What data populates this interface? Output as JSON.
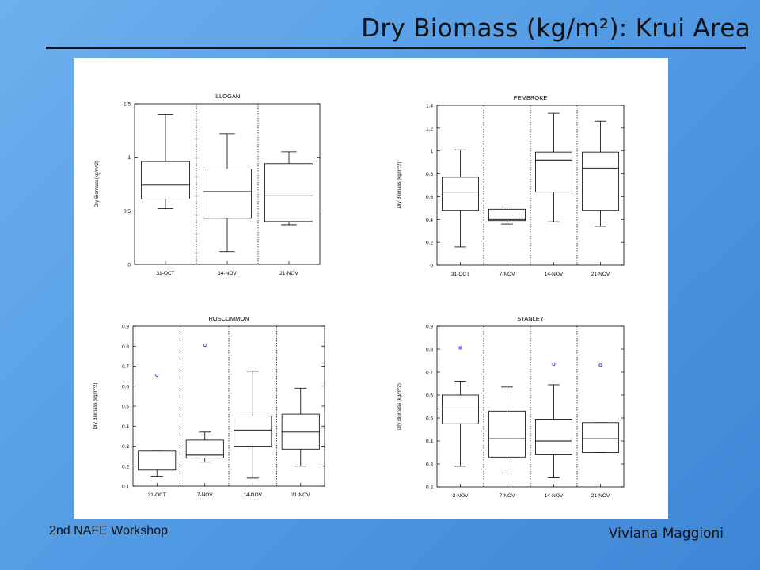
{
  "slide": {
    "title": "Dry Biomass (kg/m²): Krui Area",
    "footer_left": "2nd NAFE Workshop",
    "footer_right": "Viviana Maggioni"
  },
  "chart_data": [
    {
      "type": "boxplot",
      "title": "ILLOGAN",
      "ylabel": "Dry Biomass (kg/m^2)",
      "ylim": [
        0,
        1.5
      ],
      "yticks": [
        0,
        0.5,
        1,
        1.5
      ],
      "ytick_labels": [
        "0",
        "0.5",
        "1",
        "1.5"
      ],
      "categories": [
        "31-OCT",
        "14-NOV",
        "21-NOV"
      ],
      "boxes": [
        {
          "min": 0.52,
          "q1": 0.61,
          "median": 0.74,
          "q3": 0.96,
          "max": 1.4,
          "outliers": []
        },
        {
          "min": 0.12,
          "q1": 0.43,
          "median": 0.68,
          "q3": 0.89,
          "max": 1.22,
          "outliers": []
        },
        {
          "min": 0.37,
          "q1": 0.4,
          "median": 0.64,
          "q3": 0.94,
          "max": 1.05,
          "outliers": []
        }
      ]
    },
    {
      "type": "boxplot",
      "title": "PEMBROKE",
      "ylabel": "Dry Biomass (kg/m^2)",
      "ylim": [
        0,
        1.4
      ],
      "yticks": [
        0,
        0.2,
        0.4,
        0.6,
        0.8,
        1,
        1.2,
        1.4
      ],
      "ytick_labels": [
        "0",
        "0.2",
        "0.4",
        "0.6",
        "0.8",
        "1",
        "1.2",
        "1.4"
      ],
      "categories": [
        "31-OCT",
        "7-NOV",
        "14-NOV",
        "21-NOV"
      ],
      "boxes": [
        {
          "min": 0.16,
          "q1": 0.48,
          "median": 0.64,
          "q3": 0.77,
          "max": 1.01,
          "outliers": []
        },
        {
          "min": 0.36,
          "q1": 0.39,
          "median": 0.4,
          "q3": 0.49,
          "max": 0.51,
          "outliers": []
        },
        {
          "min": 0.38,
          "q1": 0.64,
          "median": 0.92,
          "q3": 0.99,
          "max": 1.33,
          "outliers": []
        },
        {
          "min": 0.34,
          "q1": 0.48,
          "median": 0.85,
          "q3": 0.99,
          "max": 1.26,
          "outliers": []
        }
      ]
    },
    {
      "type": "boxplot",
      "title": "ROSCOMMON",
      "ylabel": "Dry Biomass (kg/m^2)",
      "ylim": [
        0.1,
        0.9
      ],
      "yticks": [
        0.1,
        0.2,
        0.3,
        0.4,
        0.5,
        0.6,
        0.7,
        0.8,
        0.9
      ],
      "ytick_labels": [
        "0.1",
        "0.2",
        "0.3",
        "0.4",
        "0.5",
        "0.6",
        "0.7",
        "0.8",
        "0.9"
      ],
      "categories": [
        "31-OCT",
        "7-NOV",
        "14-NOV",
        "21-NOV"
      ],
      "boxes": [
        {
          "min": 0.15,
          "q1": 0.18,
          "median": 0.26,
          "q3": 0.275,
          "max": 0.275,
          "outliers": [
            0.655
          ]
        },
        {
          "min": 0.22,
          "q1": 0.24,
          "median": 0.255,
          "q3": 0.33,
          "max": 0.37,
          "outliers": [
            0.805
          ]
        },
        {
          "min": 0.14,
          "q1": 0.3,
          "median": 0.38,
          "q3": 0.45,
          "max": 0.675,
          "outliers": []
        },
        {
          "min": 0.2,
          "q1": 0.285,
          "median": 0.37,
          "q3": 0.46,
          "max": 0.59,
          "outliers": []
        }
      ]
    },
    {
      "type": "boxplot",
      "title": "STANLEY",
      "ylabel": "Dry Biomass (kg/m^2)",
      "ylim": [
        0.2,
        0.9
      ],
      "yticks": [
        0.2,
        0.3,
        0.4,
        0.5,
        0.6,
        0.7,
        0.8,
        0.9
      ],
      "ytick_labels": [
        "0.2",
        "0.3",
        "0.4",
        "0.5",
        "0.6",
        "0.7",
        "0.8",
        "0.9"
      ],
      "categories": [
        "3-NOV",
        "7-NOV",
        "14-NOV",
        "21-NOV"
      ],
      "boxes": [
        {
          "min": 0.29,
          "q1": 0.475,
          "median": 0.54,
          "q3": 0.6,
          "max": 0.66,
          "outliers": [
            0.805
          ]
        },
        {
          "min": 0.26,
          "q1": 0.33,
          "median": 0.41,
          "q3": 0.53,
          "max": 0.635,
          "outliers": []
        },
        {
          "min": 0.24,
          "q1": 0.34,
          "median": 0.4,
          "q3": 0.495,
          "max": 0.645,
          "outliers": [
            0.735
          ]
        },
        {
          "min": 0.35,
          "q1": 0.35,
          "median": 0.41,
          "q3": 0.48,
          "max": 0.48,
          "outliers": [
            0.73
          ]
        }
      ]
    }
  ]
}
